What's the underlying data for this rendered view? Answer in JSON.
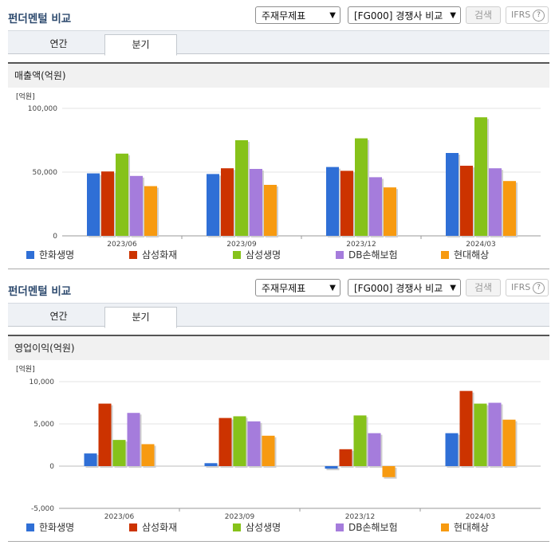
{
  "panels": [
    {
      "title": "펀더멘털 비교",
      "select1": "주재무제표",
      "select2": "[FG000] 경쟁사 비교",
      "search_label": "검색",
      "ifrs_label": "IFRS",
      "ifrs_help": "?",
      "tabs": [
        "연간",
        "분기"
      ],
      "active_tab": "분기",
      "section_title": "매출액(억원)"
    },
    {
      "title": "펀더멘털 비교",
      "select1": "주재무제표",
      "select2": "[FG000] 경쟁사 비교",
      "search_label": "검색",
      "ifrs_label": "IFRS",
      "ifrs_help": "?",
      "tabs": [
        "연간",
        "분기"
      ],
      "active_tab": "분기",
      "section_title": "영업이익(억원)"
    }
  ],
  "chart_data": [
    {
      "type": "bar",
      "title": "매출액(억원)",
      "unit_label": "[억원]",
      "categories": [
        "2023/06",
        "2023/09",
        "2023/12",
        "2024/03"
      ],
      "ylim": [
        0,
        100000
      ],
      "yticks": [
        0,
        50000,
        100000
      ],
      "ytick_labels": [
        "0",
        "50,000",
        "100,000"
      ],
      "grid": true,
      "legend_position": "bottom",
      "series": [
        {
          "name": "한화생명",
          "color": "#2f6fd6",
          "values": [
            49000,
            48500,
            54000,
            65000
          ]
        },
        {
          "name": "삼성화재",
          "color": "#cc3300",
          "values": [
            50500,
            53000,
            51000,
            55000
          ]
        },
        {
          "name": "삼성생명",
          "color": "#86c21a",
          "values": [
            64500,
            75000,
            76500,
            93000
          ]
        },
        {
          "name": "DB손해보험",
          "color": "#a57cdc",
          "values": [
            47000,
            52500,
            46000,
            53000
          ]
        },
        {
          "name": "현대해상",
          "color": "#f79a10",
          "values": [
            39000,
            40000,
            38000,
            43000
          ]
        }
      ]
    },
    {
      "type": "bar",
      "title": "영업이익(억원)",
      "unit_label": "[억원]",
      "categories": [
        "2023/06",
        "2023/09",
        "2023/12",
        "2024/03"
      ],
      "ylim": [
        -5000,
        10000
      ],
      "yticks": [
        -5000,
        0,
        5000,
        10000
      ],
      "ytick_labels": [
        "-5,000",
        "0",
        "5,000",
        "10,000"
      ],
      "grid": true,
      "legend_position": "bottom",
      "series": [
        {
          "name": "한화생명",
          "color": "#2f6fd6",
          "values": [
            1500,
            350,
            -300,
            3900
          ]
        },
        {
          "name": "삼성화재",
          "color": "#cc3300",
          "values": [
            7400,
            5700,
            2000,
            8900
          ]
        },
        {
          "name": "삼성생명",
          "color": "#86c21a",
          "values": [
            3100,
            5900,
            6000,
            7400
          ]
        },
        {
          "name": "DB손해보험",
          "color": "#a57cdc",
          "values": [
            6300,
            5300,
            3900,
            7500
          ]
        },
        {
          "name": "현대해상",
          "color": "#f79a10",
          "values": [
            2600,
            3600,
            -1300,
            5500
          ]
        }
      ]
    }
  ]
}
